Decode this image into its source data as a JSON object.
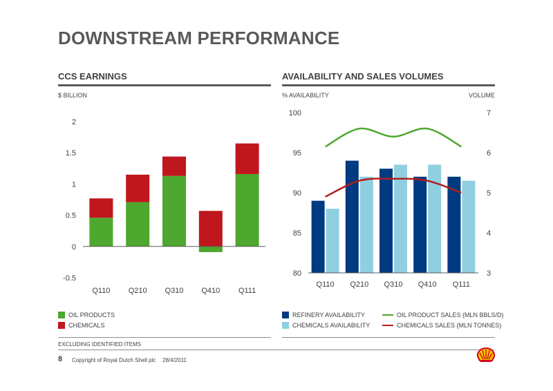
{
  "page": {
    "title": "DOWNSTREAM PERFORMANCE",
    "note": "EXCLUDING IDENTIFIED ITEMS",
    "page_number": "8",
    "copyright": "Copyright of Royal Dutch Shell plc",
    "date": "28/4/2011",
    "logo": "shell-pecten-logo"
  },
  "colors": {
    "oil_products": "#4ea72e",
    "chemicals": "#c0161d",
    "refinery": "#003a80",
    "chem_avail": "#8fcfe0",
    "oil_line": "#4ea72e",
    "chem_line": "#b01e1e"
  },
  "chart_data": [
    {
      "type": "bar",
      "title": "CCS EARNINGS",
      "ylabel": "$ BILLION",
      "stacked": true,
      "categories": [
        "Q110",
        "Q210",
        "Q310",
        "Q410",
        "Q111"
      ],
      "ylim": [
        -0.5,
        2
      ],
      "yticks": [
        "2",
        "1.5",
        "1",
        "0.5",
        "0",
        "-0.5"
      ],
      "series": [
        {
          "name": "OIL PRODUCTS",
          "values": [
            0.46,
            0.71,
            1.13,
            -0.09,
            1.16
          ]
        },
        {
          "name": "CHEMICALS",
          "values": [
            0.31,
            0.44,
            0.31,
            0.57,
            0.49
          ]
        }
      ],
      "legend": [
        "OIL PRODUCTS",
        "CHEMICALS"
      ]
    },
    {
      "type": "bar",
      "title": "AVAILABILITY AND SALES VOLUMES",
      "ylabel_left": "% AVAILABILITY",
      "ylabel_right": "VOLUME",
      "categories": [
        "Q110",
        "Q210",
        "Q310",
        "Q410",
        "Q111"
      ],
      "ylim_left": [
        80,
        100
      ],
      "ylim_right": [
        3,
        7
      ],
      "yticks_left": [
        "100",
        "95",
        "90",
        "85",
        "80"
      ],
      "yticks_right": [
        "7",
        "6",
        "5",
        "4",
        "3"
      ],
      "bar_series": [
        {
          "name": "REFINERY AVAILABILITY",
          "values": [
            89,
            94,
            93,
            92,
            92
          ]
        },
        {
          "name": "CHEMICALS AVAILABILITY",
          "values": [
            88,
            92,
            93.5,
            93.5,
            91.5
          ]
        }
      ],
      "line_series": [
        {
          "name": "OIL PRODUCT SALES (MLN BBLS/D)",
          "values": [
            6.15,
            6.6,
            6.4,
            6.6,
            6.15
          ]
        },
        {
          "name": "CHEMICALS SALES (MLN TONNES)",
          "values": [
            4.9,
            5.3,
            5.35,
            5.3,
            5.0
          ]
        }
      ]
    }
  ]
}
